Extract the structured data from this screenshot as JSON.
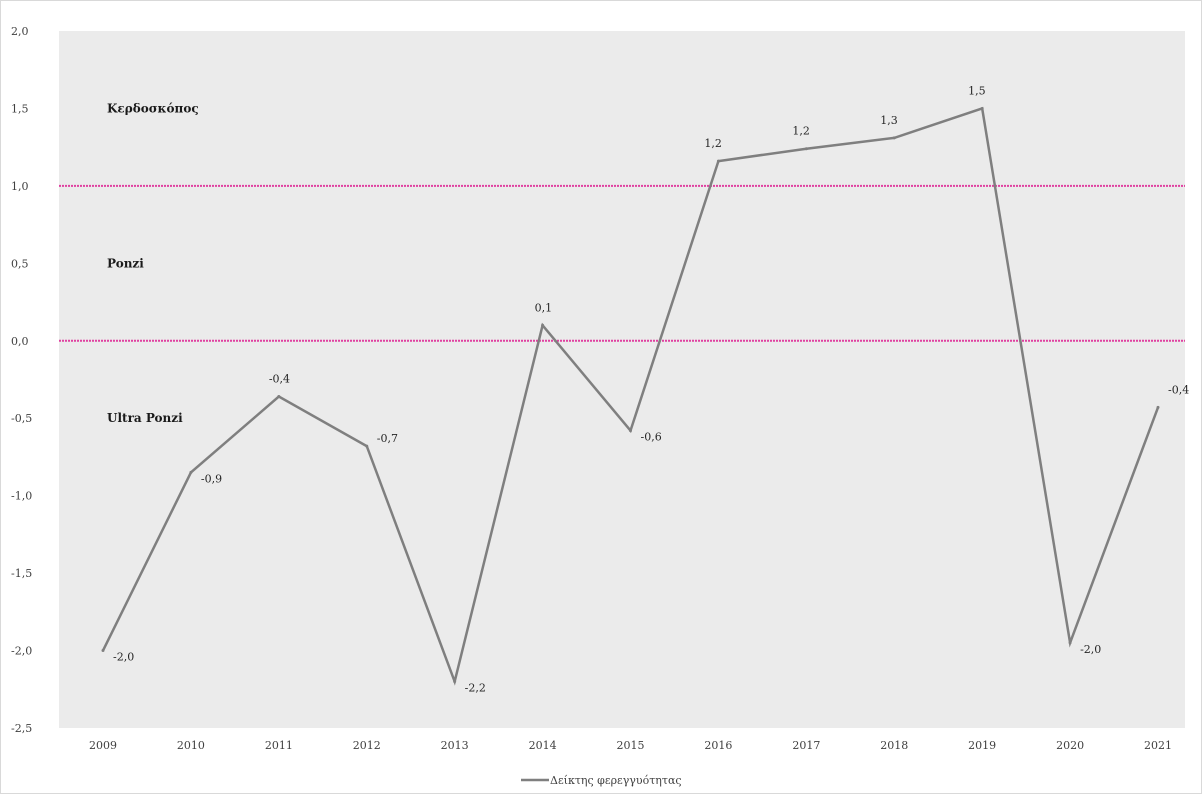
{
  "chart_data": {
    "type": "line",
    "categories": [
      "2009",
      "2010",
      "2011",
      "2012",
      "2013",
      "2014",
      "2015",
      "2016",
      "2017",
      "2018",
      "2019",
      "2020",
      "2021"
    ],
    "series": [
      {
        "name": "Δείκτης φερεγγυότητας",
        "values": [
          -2.0,
          -0.85,
          -0.36,
          -0.68,
          -2.2,
          0.1,
          -0.58,
          1.16,
          1.24,
          1.31,
          1.5,
          -1.95,
          -0.43
        ],
        "labels": [
          "-2,0",
          "-0,9",
          "-0,4",
          "-0,7",
          "-2,2",
          "0,1",
          "-0,6",
          "1,2",
          "1,2",
          "1,3",
          "1,5",
          "-2,0",
          "-0,4"
        ],
        "color": "#7f7f7f"
      }
    ],
    "ylim": [
      -2.5,
      2.0
    ],
    "yticks": [
      "-2,5",
      "-2,0",
      "-1,5",
      "-1,0",
      "-0,5",
      "0,0",
      "0,5",
      "1,0",
      "1,5",
      "2,0"
    ],
    "ytick_values": [
      -2.5,
      -2.0,
      -1.5,
      -1.0,
      -0.5,
      0.0,
      0.5,
      1.0,
      1.5,
      2.0
    ],
    "reference_lines": [
      {
        "value": 1.0,
        "color": "#e040a0"
      },
      {
        "value": 0.0,
        "color": "#e040a0"
      }
    ],
    "zones": [
      {
        "label": "Κερδοσκόπος",
        "value": 1.5
      },
      {
        "label": "Ponzi",
        "value": 0.5
      },
      {
        "label": "Ultra Ponzi",
        "value": -0.5
      }
    ],
    "plot_background": "#ebebeb",
    "grid": false,
    "legend_position": "bottom"
  }
}
